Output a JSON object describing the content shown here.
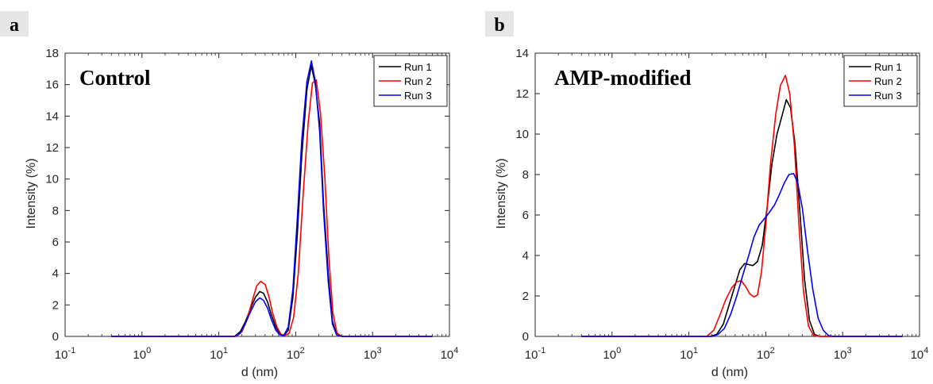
{
  "chart_data": [
    {
      "type": "line",
      "panel_label": "a",
      "title": "Control",
      "xlabel": "d (nm)",
      "ylabel": "Intensity (%)",
      "xscale": "log",
      "xlim": [
        0.1,
        10000
      ],
      "ylim": [
        0,
        18
      ],
      "xticks": [
        0.1,
        1,
        10,
        100,
        1000,
        10000
      ],
      "xtick_labels": [
        {
          "base": "10",
          "exp": "-1"
        },
        {
          "base": "10",
          "exp": "0"
        },
        {
          "base": "10",
          "exp": "1"
        },
        {
          "base": "10",
          "exp": "2"
        },
        {
          "base": "10",
          "exp": "3"
        },
        {
          "base": "10",
          "exp": "4"
        }
      ],
      "yticks": [
        0,
        2,
        4,
        6,
        8,
        10,
        12,
        14,
        16,
        18
      ],
      "ytick_labels": [
        "0",
        "2",
        "4",
        "6",
        "8",
        "10",
        "12",
        "14",
        "16",
        "18"
      ],
      "legend_position": "top-right",
      "grid": false,
      "series": [
        {
          "name": "Run 1",
          "color": "#000000",
          "x": [
            0.4,
            13,
            16,
            19,
            22,
            26,
            30,
            34,
            38,
            43,
            48,
            55,
            62,
            70,
            80,
            92,
            105,
            120,
            140,
            160,
            180,
            205,
            230,
            265,
            300,
            340,
            400,
            6000
          ],
          "y": [
            0,
            0,
            0,
            0.3,
            0.9,
            1.8,
            2.5,
            2.85,
            2.75,
            2.2,
            1.4,
            0.6,
            0.15,
            0.05,
            0.4,
            2.5,
            6.5,
            11.5,
            15.7,
            17.2,
            16.0,
            13.5,
            8.5,
            4.0,
            1.0,
            0.1,
            0,
            0
          ]
        },
        {
          "name": "Run 2",
          "color": "#ff0000",
          "x": [
            0.4,
            14,
            17,
            20,
            23,
            27,
            31,
            35,
            40,
            45,
            50,
            57,
            64,
            72,
            82,
            94,
            108,
            125,
            145,
            165,
            185,
            210,
            240,
            270,
            305,
            345,
            400,
            6000
          ],
          "y": [
            0,
            0,
            0,
            0.3,
            1.0,
            2.2,
            3.2,
            3.5,
            3.3,
            2.5,
            1.5,
            0.6,
            0.15,
            0.05,
            0.2,
            1.2,
            4.0,
            9.0,
            13.5,
            16.1,
            16.3,
            14.2,
            10.0,
            5.0,
            1.5,
            0.2,
            0,
            0
          ]
        },
        {
          "name": "Run 3",
          "color": "#0000ff",
          "x": [
            0.4,
            13,
            16,
            19,
            22,
            26,
            30,
            34,
            38,
            43,
            48,
            55,
            62,
            70,
            80,
            92,
            105,
            120,
            140,
            160,
            180,
            205,
            230,
            265,
            300,
            340,
            400,
            6000
          ],
          "y": [
            0,
            0,
            0,
            0.2,
            0.8,
            1.6,
            2.2,
            2.45,
            2.3,
            1.8,
            1.1,
            0.4,
            0.1,
            0.05,
            0.6,
            3.0,
            7.5,
            12.5,
            16.2,
            17.5,
            16.2,
            13.0,
            8.0,
            3.5,
            0.8,
            0.1,
            0,
            0
          ]
        }
      ]
    },
    {
      "type": "line",
      "panel_label": "b",
      "title": "AMP-modified",
      "xlabel": "d (nm)",
      "ylabel": "Intensity (%)",
      "xscale": "log",
      "xlim": [
        0.1,
        10000
      ],
      "ylim": [
        0,
        14
      ],
      "xticks": [
        0.1,
        1,
        10,
        100,
        1000,
        10000
      ],
      "xtick_labels": [
        {
          "base": "10",
          "exp": "-1"
        },
        {
          "base": "10",
          "exp": "0"
        },
        {
          "base": "10",
          "exp": "1"
        },
        {
          "base": "10",
          "exp": "2"
        },
        {
          "base": "10",
          "exp": "3"
        },
        {
          "base": "10",
          "exp": "4"
        }
      ],
      "yticks": [
        0,
        2,
        4,
        6,
        8,
        10,
        12,
        14
      ],
      "ytick_labels": [
        "0",
        "2",
        "4",
        "6",
        "8",
        "10",
        "12",
        "14"
      ],
      "legend_position": "top-right",
      "grid": false,
      "series": [
        {
          "name": "Run 1",
          "color": "#000000",
          "x": [
            0.4,
            19,
            23,
            28,
            33,
            39,
            46,
            53,
            60,
            68,
            78,
            90,
            105,
            120,
            140,
            160,
            185,
            210,
            240,
            280,
            320,
            370,
            430,
            500,
            6000
          ],
          "y": [
            0,
            0,
            0.1,
            0.6,
            1.5,
            2.4,
            3.3,
            3.6,
            3.55,
            3.5,
            3.7,
            4.5,
            6.5,
            8.5,
            10.0,
            10.8,
            11.7,
            11.3,
            9.5,
            6.0,
            2.8,
            0.8,
            0.1,
            0,
            0
          ]
        },
        {
          "name": "Run 2",
          "color": "#ff0000",
          "x": [
            0.4,
            17,
            21,
            25,
            30,
            36,
            42,
            48,
            55,
            62,
            70,
            78,
            88,
            100,
            115,
            135,
            155,
            180,
            205,
            235,
            270,
            310,
            360,
            420,
            500,
            6000
          ],
          "y": [
            0,
            0,
            0.3,
            1.0,
            1.8,
            2.4,
            2.7,
            2.75,
            2.45,
            2.1,
            1.95,
            2.05,
            3.2,
            5.5,
            8.5,
            11.0,
            12.4,
            12.9,
            12.0,
            9.5,
            5.5,
            2.2,
            0.5,
            0.05,
            0,
            0
          ]
        },
        {
          "name": "Run 3",
          "color": "#0000ff",
          "x": [
            0.4,
            20,
            24,
            29,
            35,
            42,
            50,
            60,
            70,
            82,
            95,
            110,
            130,
            150,
            175,
            200,
            230,
            260,
            300,
            350,
            410,
            480,
            560,
            650,
            750,
            6000
          ],
          "y": [
            0,
            0,
            0.1,
            0.4,
            1.1,
            2.0,
            3.0,
            4.0,
            4.9,
            5.5,
            5.8,
            6.1,
            6.5,
            7.0,
            7.6,
            8.0,
            8.05,
            7.6,
            6.3,
            4.2,
            2.3,
            0.9,
            0.3,
            0.05,
            0,
            0
          ]
        }
      ]
    }
  ]
}
